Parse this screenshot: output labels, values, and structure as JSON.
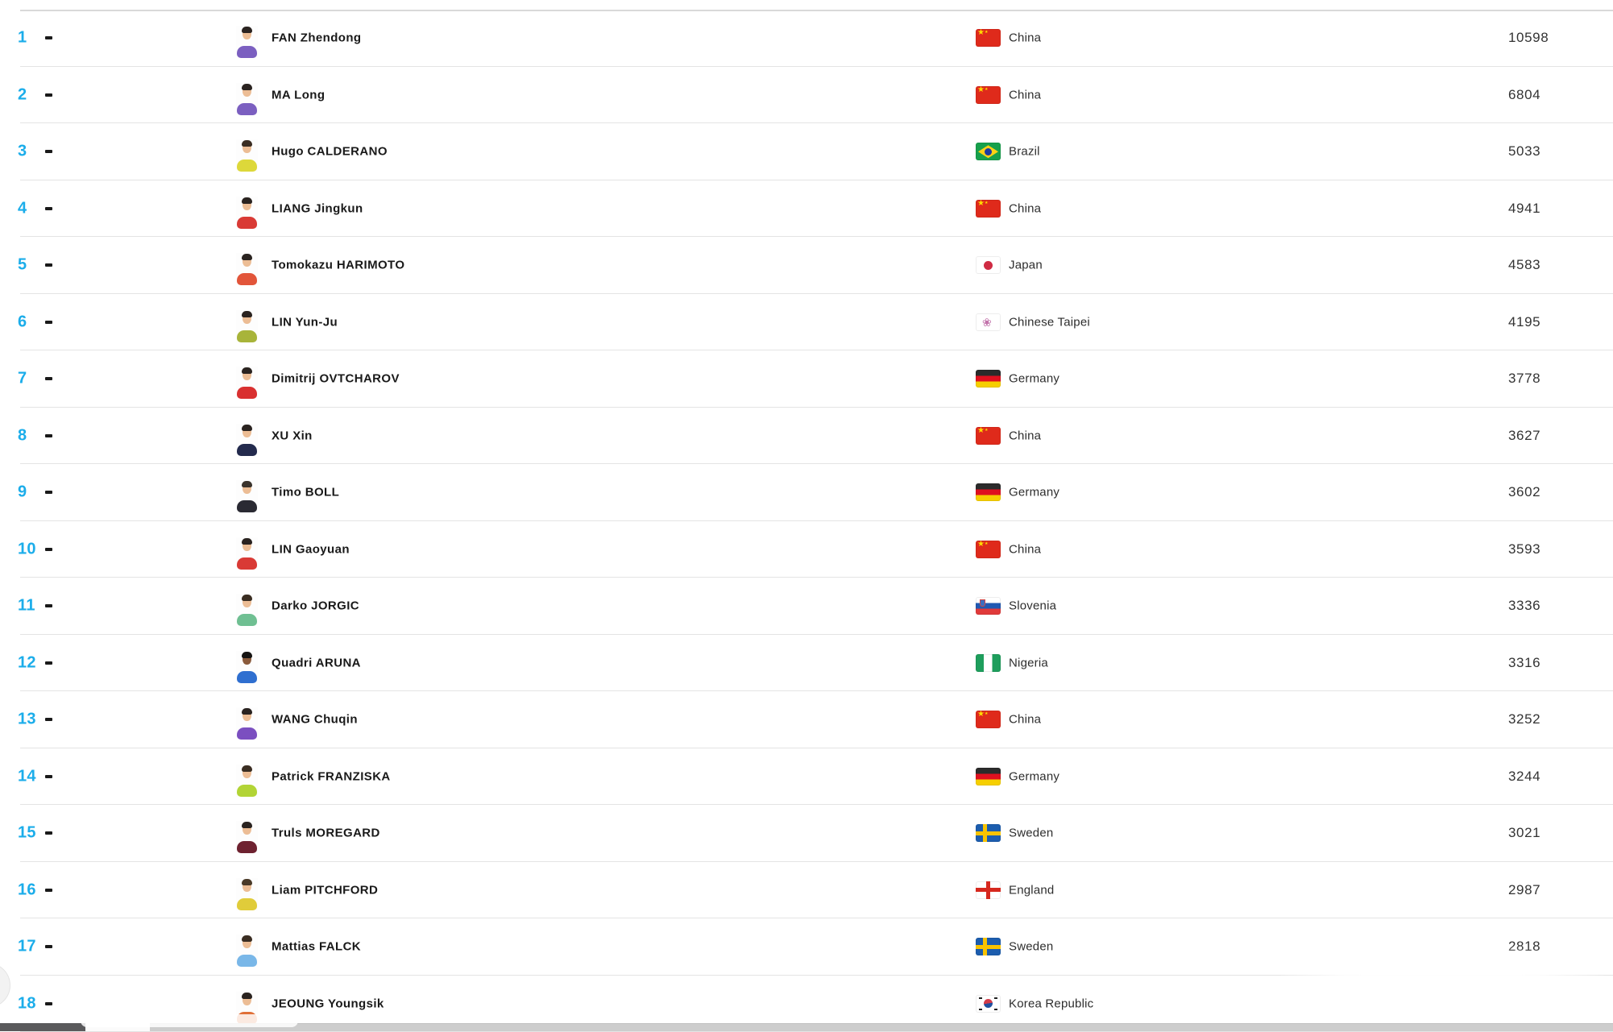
{
  "table": {
    "accent_color": "#1badea",
    "rank_change_symbol": "-",
    "columns": [
      "rank",
      "player",
      "country",
      "points"
    ],
    "rows": [
      {
        "rank": "1",
        "name": "FAN Zhendong",
        "country": "China",
        "flag": "chn",
        "flag_icon": "china-flag-icon",
        "points": "10598",
        "avatar": {
          "shirt": "#7b5fc0",
          "skin": "#ecbd95",
          "hair": "#2a2320"
        }
      },
      {
        "rank": "2",
        "name": "MA Long",
        "country": "China",
        "flag": "chn",
        "flag_icon": "china-flag-icon",
        "points": "6804",
        "avatar": {
          "shirt": "#7b5fc0",
          "skin": "#ecbd95",
          "hair": "#2a2320"
        }
      },
      {
        "rank": "3",
        "name": "Hugo CALDERANO",
        "country": "Brazil",
        "flag": "bra",
        "flag_icon": "brazil-flag-icon",
        "points": "5033",
        "avatar": {
          "shirt": "#ddd83a",
          "skin": "#ecbd95",
          "hair": "#3a2d22"
        }
      },
      {
        "rank": "4",
        "name": "LIANG Jingkun",
        "country": "China",
        "flag": "chn",
        "flag_icon": "china-flag-icon",
        "points": "4941",
        "avatar": {
          "shirt": "#d93a35",
          "skin": "#ecbd95",
          "hair": "#2a2320"
        }
      },
      {
        "rank": "5",
        "name": "Tomokazu HARIMOTO",
        "country": "Japan",
        "flag": "jpn",
        "flag_icon": "japan-flag-icon",
        "points": "4583",
        "avatar": {
          "shirt": "#e2553a",
          "skin": "#ecbd95",
          "hair": "#2a2320"
        }
      },
      {
        "rank": "6",
        "name": "LIN Yun-Ju",
        "country": "Chinese Taipei",
        "flag": "tpe",
        "flag_icon": "chinese-taipei-flag-icon",
        "points": "4195",
        "avatar": {
          "shirt": "#a8b43a",
          "skin": "#ecbd95",
          "hair": "#2a2320"
        }
      },
      {
        "rank": "7",
        "name": "Dimitrij OVTCHAROV",
        "country": "Germany",
        "flag": "ger",
        "flag_icon": "germany-flag-icon",
        "points": "3778",
        "avatar": {
          "shirt": "#d93030",
          "skin": "#ecbd95",
          "hair": "#2a2320"
        }
      },
      {
        "rank": "8",
        "name": "XU Xin",
        "country": "China",
        "flag": "chn",
        "flag_icon": "china-flag-icon",
        "points": "3627",
        "avatar": {
          "shirt": "#232a4d",
          "skin": "#ecbd95",
          "hair": "#2a2320"
        }
      },
      {
        "rank": "9",
        "name": "Timo BOLL",
        "country": "Germany",
        "flag": "ger",
        "flag_icon": "germany-flag-icon",
        "points": "3602",
        "avatar": {
          "shirt": "#2a2a33",
          "skin": "#ecbd95",
          "hair": "#3a332c"
        }
      },
      {
        "rank": "10",
        "name": "LIN Gaoyuan",
        "country": "China",
        "flag": "chn",
        "flag_icon": "china-flag-icon",
        "points": "3593",
        "avatar": {
          "shirt": "#d93a35",
          "skin": "#ecbd95",
          "hair": "#2a2320"
        }
      },
      {
        "rank": "11",
        "name": "Darko JORGIC",
        "country": "Slovenia",
        "flag": "svn",
        "flag_icon": "slovenia-flag-icon",
        "points": "3336",
        "avatar": {
          "shirt": "#6fbf92",
          "skin": "#ecbd95",
          "hair": "#3a2d22"
        }
      },
      {
        "rank": "12",
        "name": "Quadri ARUNA",
        "country": "Nigeria",
        "flag": "ngr",
        "flag_icon": "nigeria-flag-icon",
        "points": "3316",
        "avatar": {
          "shirt": "#2f6fd0",
          "skin": "#8a5a3b",
          "hair": "#151312"
        }
      },
      {
        "rank": "13",
        "name": "WANG Chuqin",
        "country": "China",
        "flag": "chn",
        "flag_icon": "china-flag-icon",
        "points": "3252",
        "avatar": {
          "shirt": "#7b4fc0",
          "skin": "#ecbd95",
          "hair": "#2a2320"
        }
      },
      {
        "rank": "14",
        "name": "Patrick FRANZISKA",
        "country": "Germany",
        "flag": "ger",
        "flag_icon": "germany-flag-icon",
        "points": "3244",
        "avatar": {
          "shirt": "#b2d435",
          "skin": "#ecbd95",
          "hair": "#3a2d22"
        }
      },
      {
        "rank": "15",
        "name": "Truls MOREGARD",
        "country": "Sweden",
        "flag": "swe",
        "flag_icon": "sweden-flag-icon",
        "points": "3021",
        "avatar": {
          "shirt": "#6e2230",
          "skin": "#ecbd95",
          "hair": "#2a2320"
        }
      },
      {
        "rank": "16",
        "name": "Liam PITCHFORD",
        "country": "England",
        "flag": "eng",
        "flag_icon": "england-flag-icon",
        "points": "2987",
        "avatar": {
          "shirt": "#e0cc3a",
          "skin": "#ecbd95",
          "hair": "#4a3a28"
        }
      },
      {
        "rank": "17",
        "name": "Mattias FALCK",
        "country": "Sweden",
        "flag": "swe",
        "flag_icon": "sweden-flag-icon",
        "points": "2818",
        "avatar": {
          "shirt": "#79b7e8",
          "skin": "#ecbd95",
          "hair": "#3a2d22"
        }
      },
      {
        "rank": "18",
        "name": "JEOUNG Youngsik",
        "country": "Korea Republic",
        "flag": "kor",
        "flag_icon": "korea-republic-flag-icon",
        "points": "",
        "avatar": {
          "shirt": "#e07038",
          "skin": "#ecbd95",
          "hair": "#2a2320"
        }
      }
    ]
  }
}
